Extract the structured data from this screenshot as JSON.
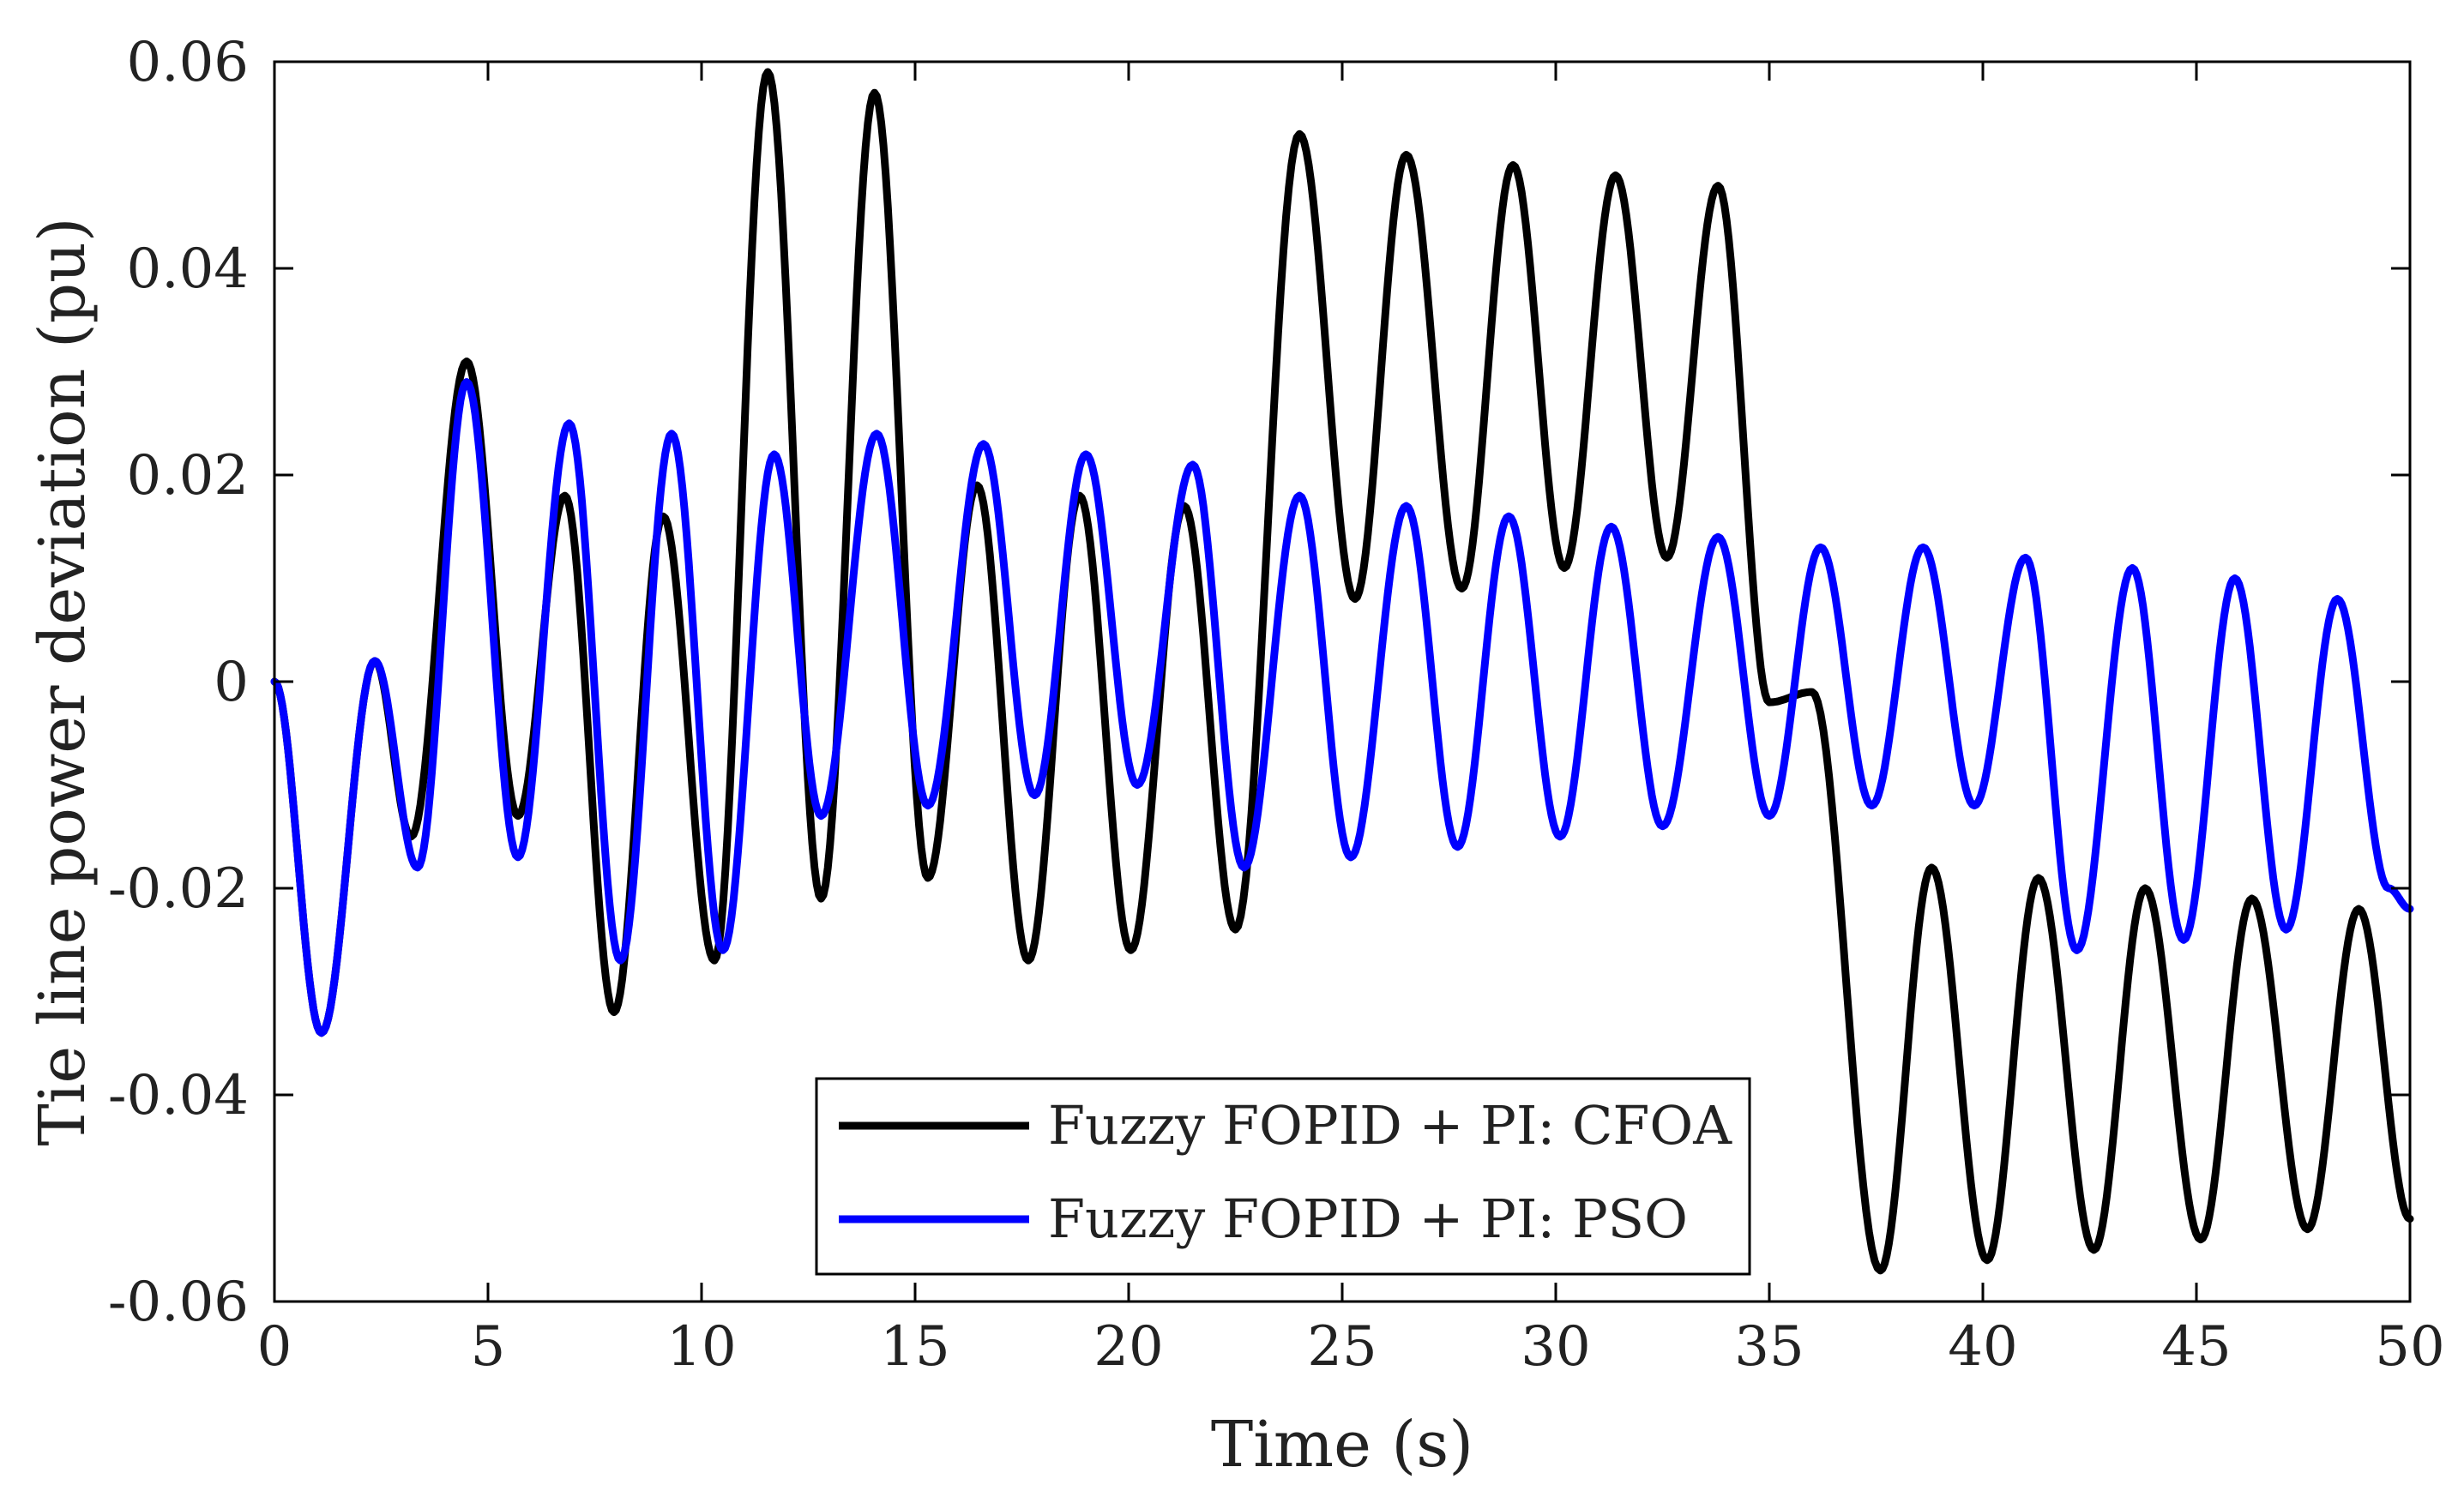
{
  "chart_data": {
    "type": "line",
    "title": "",
    "xlabel": "Time (s)",
    "ylabel": "Tie line power deviation (pu)",
    "xlim": [
      0,
      50
    ],
    "ylim": [
      -0.06,
      0.06
    ],
    "xticks": [
      0,
      5,
      10,
      15,
      20,
      25,
      30,
      35,
      40,
      45,
      50
    ],
    "xtick_labels": [
      "0",
      "5",
      "10",
      "15",
      "20",
      "25",
      "30",
      "35",
      "40",
      "45",
      "50"
    ],
    "yticks": [
      -0.06,
      -0.04,
      -0.02,
      0,
      0.02,
      0.04,
      0.06
    ],
    "ytick_labels": [
      "-0.06",
      "-0.04",
      "-0.02",
      "0",
      "0.02",
      "0.04",
      "0.06"
    ],
    "grid": false,
    "legend_position": "bottom-center",
    "series": [
      {
        "name": "Fuzzy FOPID + PI: CFOA",
        "color": "#000000",
        "x": [
          0,
          1.1,
          2.35,
          3.2,
          4.5,
          5.7,
          6.8,
          7.95,
          9.1,
          10.3,
          11.55,
          12.8,
          14.05,
          15.3,
          16.45,
          17.65,
          18.85,
          20.05,
          21.3,
          22.5,
          24.0,
          25.3,
          26.5,
          27.8,
          29.0,
          30.2,
          31.4,
          32.6,
          33.8,
          35.0,
          36.0,
          37.6,
          38.8,
          40.1,
          41.3,
          42.6,
          43.8,
          45.1,
          46.3,
          47.6,
          48.8,
          50.0
        ],
        "y": [
          0,
          -0.034,
          0.002,
          -0.015,
          0.031,
          -0.013,
          0.018,
          -0.032,
          0.016,
          -0.027,
          0.059,
          -0.021,
          0.057,
          -0.019,
          0.019,
          -0.027,
          0.018,
          -0.026,
          0.017,
          -0.024,
          0.053,
          0.008,
          0.051,
          0.009,
          0.05,
          0.011,
          0.049,
          0.012,
          0.048,
          -0.002,
          -0.001,
          -0.057,
          -0.018,
          -0.056,
          -0.019,
          -0.055,
          -0.02,
          -0.054,
          -0.021,
          -0.053,
          -0.022,
          -0.052
        ]
      },
      {
        "name": "Fuzzy FOPID + PI: PSO",
        "color": "#0000ff",
        "x": [
          0,
          1.1,
          2.35,
          3.35,
          4.5,
          5.7,
          6.9,
          8.1,
          9.3,
          10.5,
          11.7,
          12.8,
          14.1,
          15.3,
          16.6,
          17.8,
          19.0,
          20.2,
          21.5,
          22.7,
          24.0,
          25.2,
          26.5,
          27.7,
          28.9,
          30.1,
          31.3,
          32.5,
          33.8,
          35.0,
          36.2,
          37.4,
          38.6,
          39.8,
          41.0,
          42.2,
          43.5,
          44.7,
          45.9,
          47.1,
          48.3,
          49.5,
          50.0
        ],
        "y": [
          0,
          -0.034,
          0.002,
          -0.018,
          0.029,
          -0.017,
          0.025,
          -0.027,
          0.024,
          -0.026,
          0.022,
          -0.013,
          0.024,
          -0.012,
          0.023,
          -0.011,
          0.022,
          -0.01,
          0.021,
          -0.018,
          0.018,
          -0.017,
          0.017,
          -0.016,
          0.016,
          -0.015,
          0.015,
          -0.014,
          0.014,
          -0.013,
          0.013,
          -0.012,
          0.013,
          -0.012,
          0.012,
          -0.026,
          0.011,
          -0.025,
          0.01,
          -0.024,
          0.008,
          -0.02,
          -0.022
        ]
      }
    ]
  }
}
